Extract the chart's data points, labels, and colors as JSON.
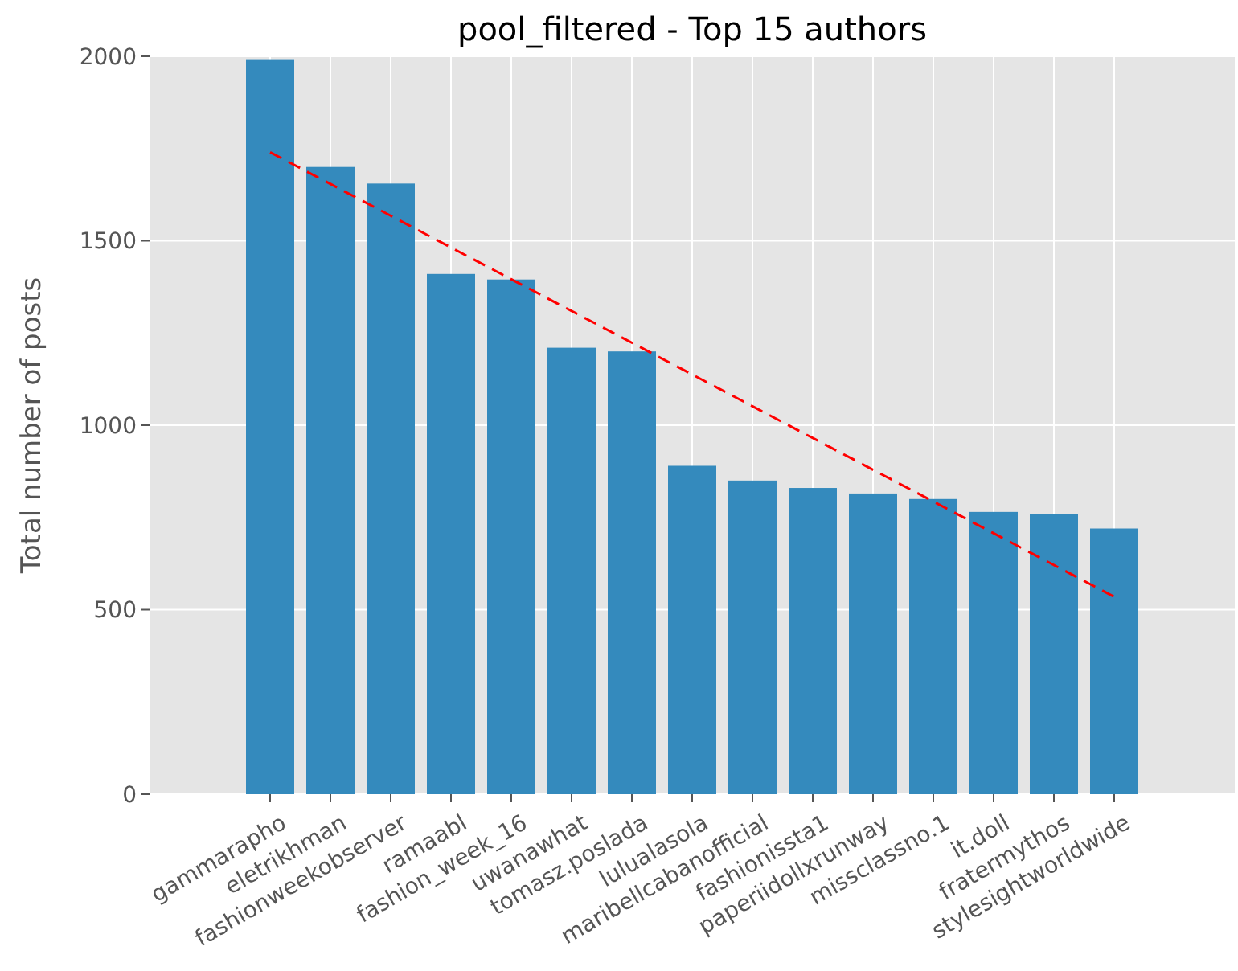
{
  "chart_data": {
    "type": "bar",
    "title": "pool_filtered - Top 15 authors",
    "ylabel": "Total number of posts",
    "categories": [
      "gammarapho",
      "eletrikhman",
      "fashionweekobserver",
      "ramaabl",
      "fashion_week_16",
      "uwanawhat",
      "tomasz.poslada",
      "lulualasola",
      "maribellcabanofficial",
      "fashionissta1",
      "paperiidollxrunway",
      "missclassno.1",
      "it.doll",
      "fratermythos",
      "stylesightworldwide"
    ],
    "series": [
      {
        "color": "#348abd",
        "values": [
          1990,
          1700,
          1655,
          1410,
          1395,
          1210,
          1200,
          890,
          850,
          830,
          815,
          800,
          765,
          760,
          720
        ]
      },
      {
        "type": "line",
        "color": "#ff0000",
        "line_style": "dashed",
        "x": [
          "gammarapho",
          "stylesightworldwide"
        ],
        "values": [
          1740,
          535
        ]
      }
    ],
    "ylim": [
      0,
      2000
    ],
    "yticks": [
      0,
      500,
      1000,
      1500,
      2000
    ],
    "grid": true
  }
}
